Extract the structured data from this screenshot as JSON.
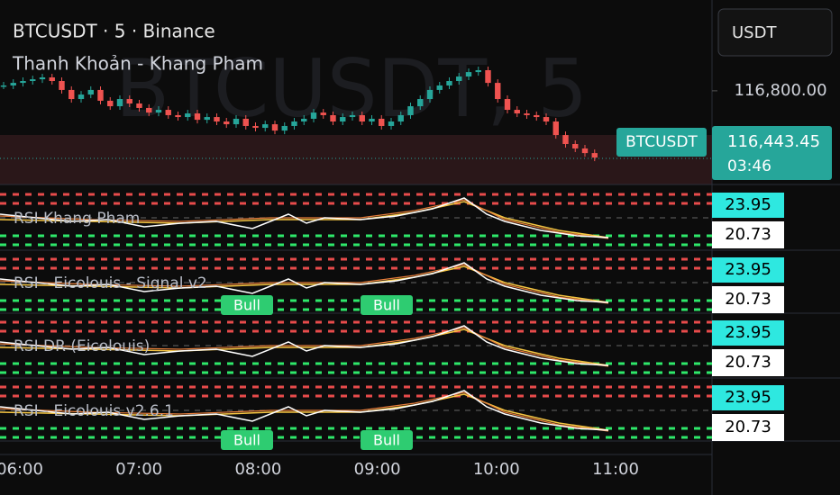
{
  "header": {
    "symbol_line": "BTCUSDT · 5 · Binance",
    "indicator": "Thanh Khoản - Khang Pham",
    "watermark": "BTCUSDT, 5"
  },
  "currency": "USDT",
  "chart_data": {
    "type": "candlestick",
    "closes": [
      116837,
      116855,
      116868,
      116880,
      116893,
      116868,
      116806,
      116743,
      116774,
      116806,
      116731,
      116693,
      116743,
      116712,
      116681,
      116649,
      116668,
      116631,
      116618,
      116643,
      116599,
      116618,
      116587,
      116568,
      116606,
      116556,
      116543,
      116568,
      116524,
      116556,
      116587,
      116606,
      116649,
      116631,
      116587,
      116618,
      116631,
      116587,
      116606,
      116556,
      116587,
      116631,
      116693,
      116743,
      116806,
      116837,
      116868,
      116899,
      116930,
      116943,
      116855,
      116743,
      116668,
      116643,
      116631,
      116618,
      116587,
      116493,
      116431,
      116400,
      116368,
      116337
    ],
    "ylim": [
      116150,
      117430
    ],
    "yticks": [
      {
        "value": 116800,
        "label": "116,800.00"
      }
    ],
    "last_price": {
      "value": 116443.45,
      "label": "116,443.45"
    },
    "last_symbol": "BTCUSDT",
    "countdown": "03:46",
    "x": [
      "06:00",
      "07:00",
      "08:00",
      "09:00",
      "10:00",
      "11:00"
    ],
    "up_color": "#26a69a",
    "down_color": "#ef5350"
  },
  "indicators": [
    {
      "name": "RSI Khang Pham",
      "upper": 23.95,
      "lower": 20.73,
      "signals": []
    },
    {
      "name": "RSI - Eicolouis - Signal v2",
      "upper": 23.95,
      "lower": 20.73,
      "signals": [
        "Bull",
        "Bull"
      ]
    },
    {
      "name": "RSI DR (Eicolouis)",
      "upper": 23.95,
      "lower": 20.73,
      "signals": []
    },
    {
      "name": "RSI - Eicolouis v2.6.1",
      "upper": 23.95,
      "lower": 20.73,
      "signals": [
        "Bull",
        "Bull"
      ]
    }
  ]
}
